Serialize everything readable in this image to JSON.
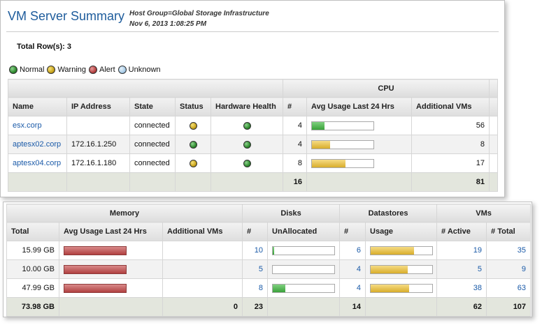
{
  "header": {
    "title": "VM Server Summary",
    "host_group": "Host Group=Global Storage Infrastructure",
    "timestamp": "Nov 6, 2013 1:08:25 PM"
  },
  "total_rows": "Total Row(s): 3",
  "legend": [
    {
      "label": "Normal",
      "color": "green"
    },
    {
      "label": "Warning",
      "color": "yellow"
    },
    {
      "label": "Alert",
      "color": "red"
    },
    {
      "label": "Unknown",
      "color": "blue"
    }
  ],
  "cpu_table": {
    "group_header": "CPU",
    "columns": [
      "Name",
      "IP Address",
      "State",
      "Status",
      "Hardware Health",
      "#",
      "Avg Usage Last 24 Hrs",
      "Additional VMs"
    ],
    "rows": [
      {
        "name": "esx.corp",
        "ip": "",
        "state": "connected",
        "status": "yellow",
        "health": "green",
        "cpu_count": "4",
        "cpu_usage": 0.2,
        "additional_vms": "56"
      },
      {
        "name": "aptesx02.corp",
        "ip": "172.16.1.250",
        "state": "connected",
        "status": "green",
        "health": "green",
        "cpu_count": "4",
        "cpu_usage": 0.3,
        "additional_vms": "8"
      },
      {
        "name": "aptesx04.corp",
        "ip": "172.16.1.180",
        "state": "connected",
        "status": "yellow",
        "health": "green",
        "cpu_count": "8",
        "cpu_usage": 0.55,
        "additional_vms": "17"
      }
    ],
    "totals": {
      "cpu_count": "16",
      "additional_vms": "81"
    }
  },
  "resource_table": {
    "group_headers": [
      "Memory",
      "Disks",
      "Datastores",
      "VMs"
    ],
    "columns": [
      "Total",
      "Avg Usage Last 24 Hrs",
      "Additional VMs",
      "#",
      "UnAllocated",
      "#",
      "Usage",
      "# Active",
      "# Total"
    ],
    "rows": [
      {
        "mem_total": "15.99 GB",
        "mem_usage": 1.0,
        "mem_additional": "",
        "disk_count": "10",
        "disk_unallocated": 0.02,
        "ds_count": "6",
        "ds_usage": 0.7,
        "vms_active": "19",
        "vms_total": "35"
      },
      {
        "mem_total": "10.00 GB",
        "mem_usage": 1.0,
        "mem_additional": "",
        "disk_count": "5",
        "disk_unallocated": 0.0,
        "ds_count": "4",
        "ds_usage": 0.6,
        "vms_active": "5",
        "vms_total": "9"
      },
      {
        "mem_total": "47.99 GB",
        "mem_usage": 1.0,
        "mem_additional": "",
        "disk_count": "8",
        "disk_unallocated": 0.2,
        "ds_count": "4",
        "ds_usage": 0.63,
        "vms_active": "38",
        "vms_total": "63"
      }
    ],
    "totals": {
      "mem_total": "73.98 GB",
      "mem_additional": "0",
      "disk_count": "23",
      "ds_count": "14",
      "vms_active": "62",
      "vms_total": "107"
    }
  }
}
